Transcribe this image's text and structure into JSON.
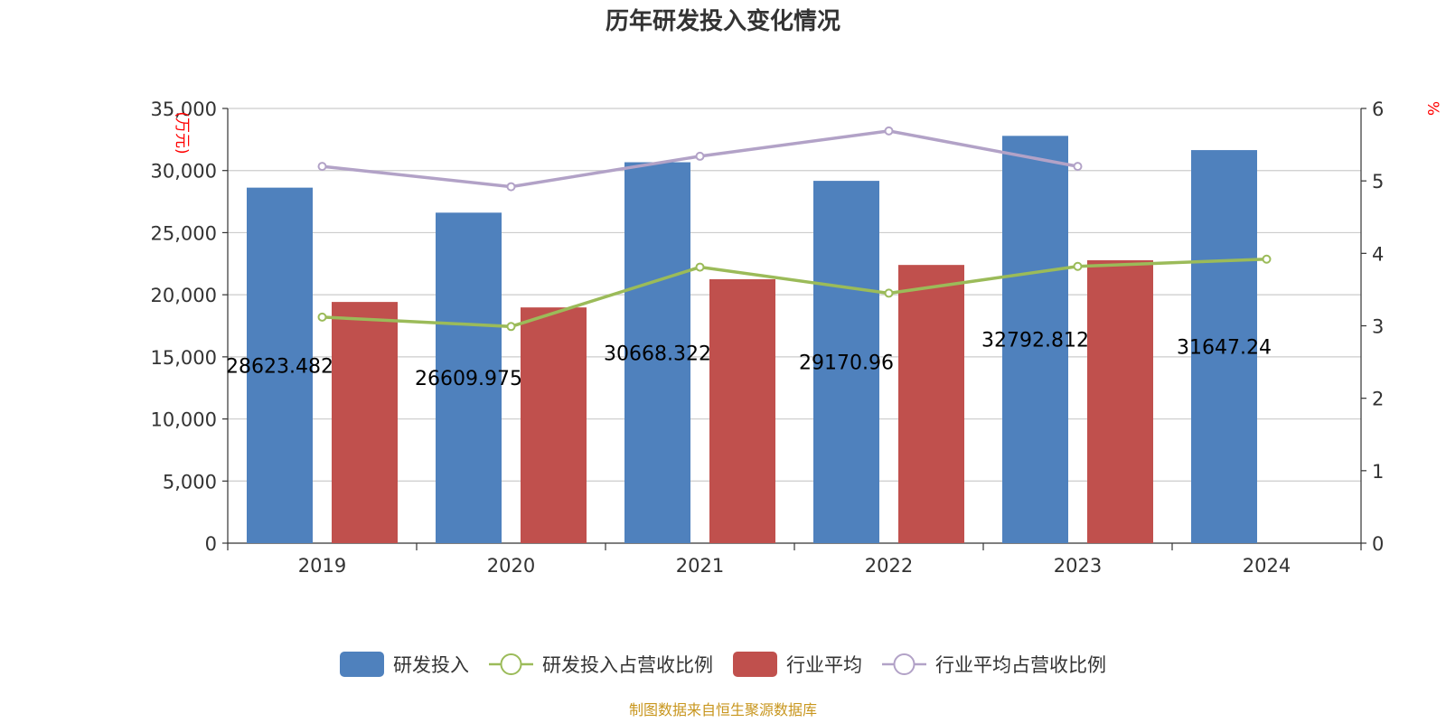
{
  "chart_data": {
    "type": "bar",
    "title": "历年研发投入变化情况",
    "categories": [
      "2019",
      "2020",
      "2021",
      "2022",
      "2023",
      "2024"
    ],
    "left_axis": {
      "unit": "(万元)",
      "ylim": [
        0,
        35000
      ],
      "ticks": [
        0,
        5000,
        10000,
        15000,
        20000,
        25000,
        30000,
        35000
      ],
      "tick_labels": [
        "0",
        "5,000",
        "10,000",
        "15,000",
        "20,000",
        "25,000",
        "30,000",
        "35,000"
      ]
    },
    "right_axis": {
      "unit": "%",
      "ylim": [
        0,
        6
      ],
      "ticks": [
        0,
        1,
        2,
        3,
        4,
        5,
        6
      ],
      "tick_labels": [
        "0",
        "1",
        "2",
        "3",
        "4",
        "5",
        "6"
      ]
    },
    "series": [
      {
        "name": "研发投入",
        "kind": "bar",
        "axis": "left",
        "color": "#4f81bd",
        "values": [
          28623.482,
          26609.975,
          30668.322,
          29170.96,
          32792.812,
          31647.24
        ],
        "labels": [
          "28623.482",
          "26609.975",
          "30668.322",
          "29170.96",
          "32792.812",
          "31647.24"
        ]
      },
      {
        "name": "研发投入占营收比例",
        "kind": "line",
        "axis": "right",
        "color": "#9bbb59",
        "values": [
          3.12,
          2.99,
          3.81,
          3.45,
          3.82,
          3.92
        ]
      },
      {
        "name": "行业平均",
        "kind": "bar",
        "axis": "left",
        "color": "#c0504d",
        "values": [
          19420,
          18980,
          21250,
          22400,
          22780,
          null
        ]
      },
      {
        "name": "行业平均占营收比例",
        "kind": "line",
        "axis": "right",
        "color": "#b2a2c7",
        "values": [
          5.2,
          4.92,
          5.34,
          5.69,
          5.2,
          null
        ]
      }
    ],
    "grid": true,
    "legend_position": "bottom"
  },
  "source": "制图数据来自恒生聚源数据库"
}
